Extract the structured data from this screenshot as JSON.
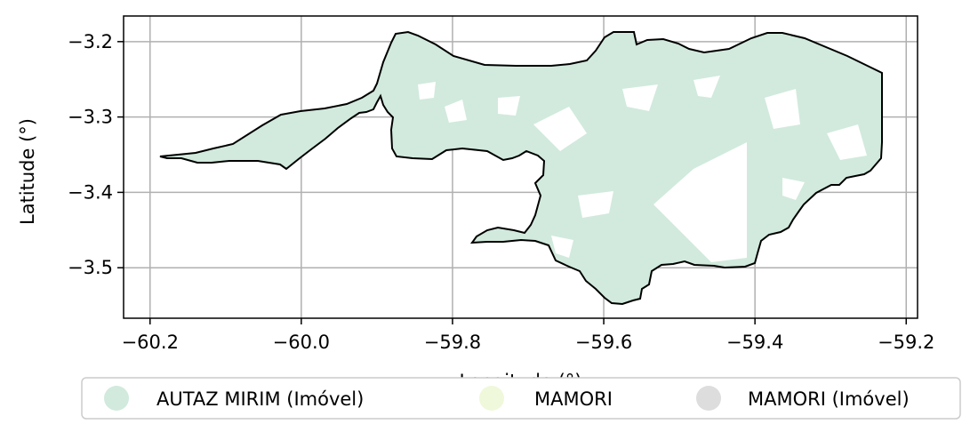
{
  "map": {
    "xlabel": "Longitude (°)",
    "ylabel": "Latitude (°)",
    "xlim": [
      -60.235,
      -59.185
    ],
    "ylim": [
      -3.567,
      -3.166
    ],
    "x_ticks": [
      {
        "value": -60.2,
        "label": "−60.2"
      },
      {
        "value": -60.0,
        "label": "−60.0"
      },
      {
        "value": -59.8,
        "label": "−59.8"
      },
      {
        "value": -59.6,
        "label": "−59.6"
      },
      {
        "value": -59.4,
        "label": "−59.4"
      },
      {
        "value": -59.2,
        "label": "−59.2"
      }
    ],
    "y_ticks": [
      {
        "value": -3.2,
        "label": "−3.2"
      },
      {
        "value": -3.3,
        "label": "−3.3"
      },
      {
        "value": -3.4,
        "label": "−3.4"
      },
      {
        "value": -3.5,
        "label": "−3.5"
      }
    ],
    "grid": true,
    "legend_position": "bottom-center",
    "outline_color": "#000000",
    "fill_color": "#d1eadd",
    "grid_color": "#b0b0b0"
  },
  "chart_data": {
    "type": "map",
    "legend": [
      {
        "name": "AUTAZ MIRIM (Imóvel)",
        "color": "#d1eadd"
      },
      {
        "name": "MAMORI",
        "color": "#eff8da"
      },
      {
        "name": "MAMORI (Imóvel)",
        "color": "#dddddd"
      }
    ]
  }
}
